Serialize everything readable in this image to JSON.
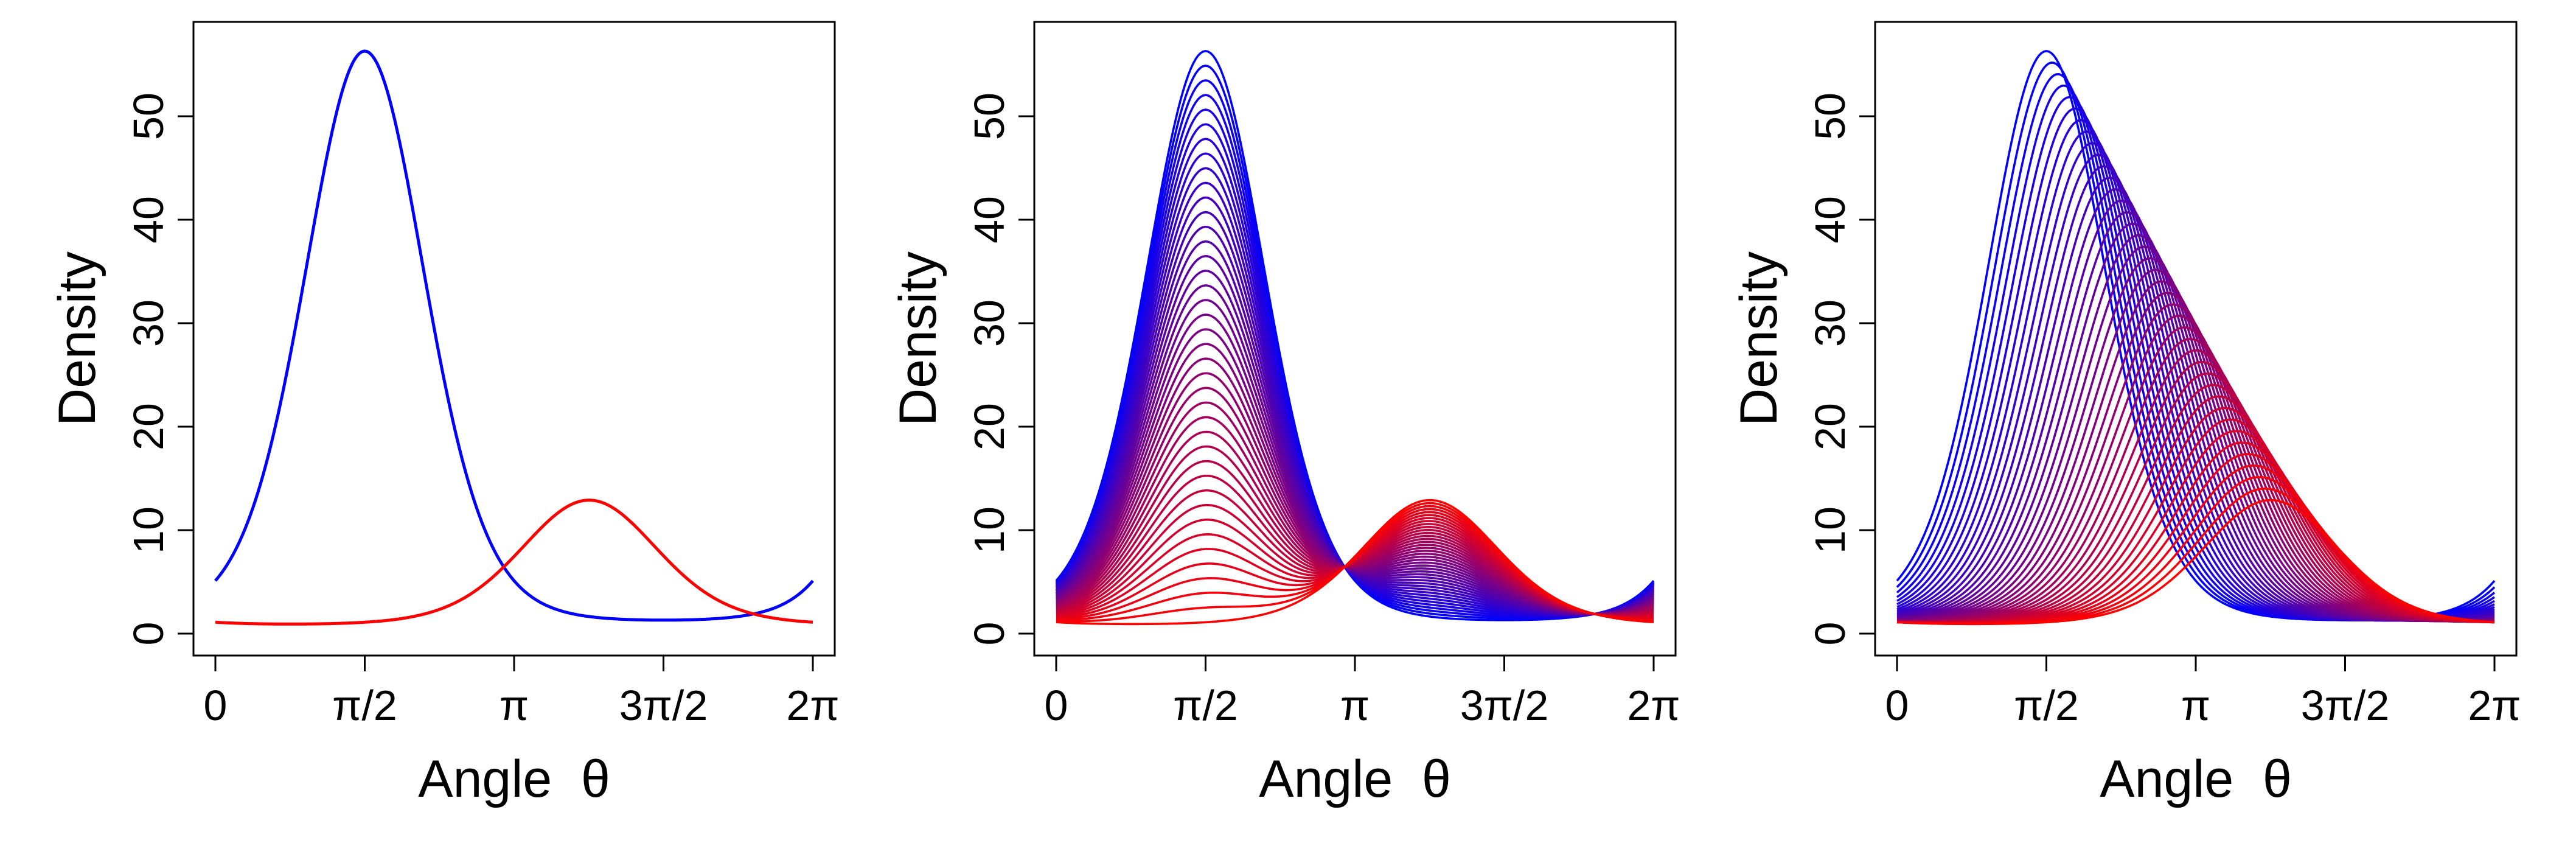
{
  "chart_data": [
    {
      "type": "line",
      "panel": "left",
      "xlabel": "Angle  θ",
      "ylabel": "Density",
      "xlim": [
        0,
        6.2832
      ],
      "ylim": [
        0,
        57
      ],
      "xticks": [
        0,
        1.5708,
        3.1416,
        4.7124,
        6.2832
      ],
      "xtick_labels": [
        "0",
        "π/2",
        "π",
        "3π/2",
        "2π"
      ],
      "yticks": [
        0,
        10,
        20,
        30,
        40,
        50
      ],
      "ytick_labels": [
        "0",
        "10",
        "20",
        "30",
        "40",
        "50"
      ],
      "grid": false,
      "series_kind": "two curves",
      "curve_start": {
        "mu": 1.5708,
        "peak": 56.3,
        "baseline": 1.0,
        "kappa": 2.6,
        "color": "#0000ff"
      },
      "curve_end": {
        "mu": 3.93,
        "peak": 12.9,
        "baseline": 0.7,
        "kappa": 2.0,
        "color": "#ff0000"
      },
      "count": 2
    },
    {
      "type": "line",
      "panel": "middle",
      "xlabel": "Angle  θ",
      "ylabel": "Density",
      "xlim": [
        0,
        6.2832
      ],
      "ylim": [
        0,
        57
      ],
      "xticks": [
        0,
        1.5708,
        3.1416,
        4.7124,
        6.2832
      ],
      "xtick_labels": [
        "0",
        "π/2",
        "π",
        "3π/2",
        "2π"
      ],
      "yticks": [
        0,
        10,
        20,
        30,
        40,
        50
      ],
      "ytick_labels": [
        "0",
        "10",
        "20",
        "30",
        "40",
        "50"
      ],
      "grid": false,
      "series_kind": "mixture interpolation",
      "curve_start": {
        "mu": 1.5708,
        "peak": 56.3,
        "baseline": 1.0,
        "kappa": 2.6,
        "color": "#0000ff"
      },
      "curve_end": {
        "mu": 3.93,
        "peak": 12.9,
        "baseline": 0.7,
        "kappa": 2.0,
        "color": "#ff0000"
      },
      "count": 40
    },
    {
      "type": "line",
      "panel": "right",
      "xlabel": "Angle  θ",
      "ylabel": "Density",
      "xlim": [
        0,
        6.2832
      ],
      "ylim": [
        0,
        57
      ],
      "xticks": [
        0,
        1.5708,
        3.1416,
        4.7124,
        6.2832
      ],
      "xtick_labels": [
        "0",
        "π/2",
        "π",
        "3π/2",
        "2π"
      ],
      "yticks": [
        0,
        10,
        20,
        30,
        40,
        50
      ],
      "ytick_labels": [
        "0",
        "10",
        "20",
        "30",
        "40",
        "50"
      ],
      "grid": false,
      "series_kind": "parameter interpolation",
      "curve_start": {
        "mu": 1.5708,
        "peak": 56.3,
        "baseline": 1.0,
        "kappa": 2.6,
        "color": "#0000ff"
      },
      "curve_end": {
        "mu": 3.93,
        "peak": 12.9,
        "baseline": 0.7,
        "kappa": 2.0,
        "color": "#ff0000"
      },
      "count": 40
    }
  ]
}
